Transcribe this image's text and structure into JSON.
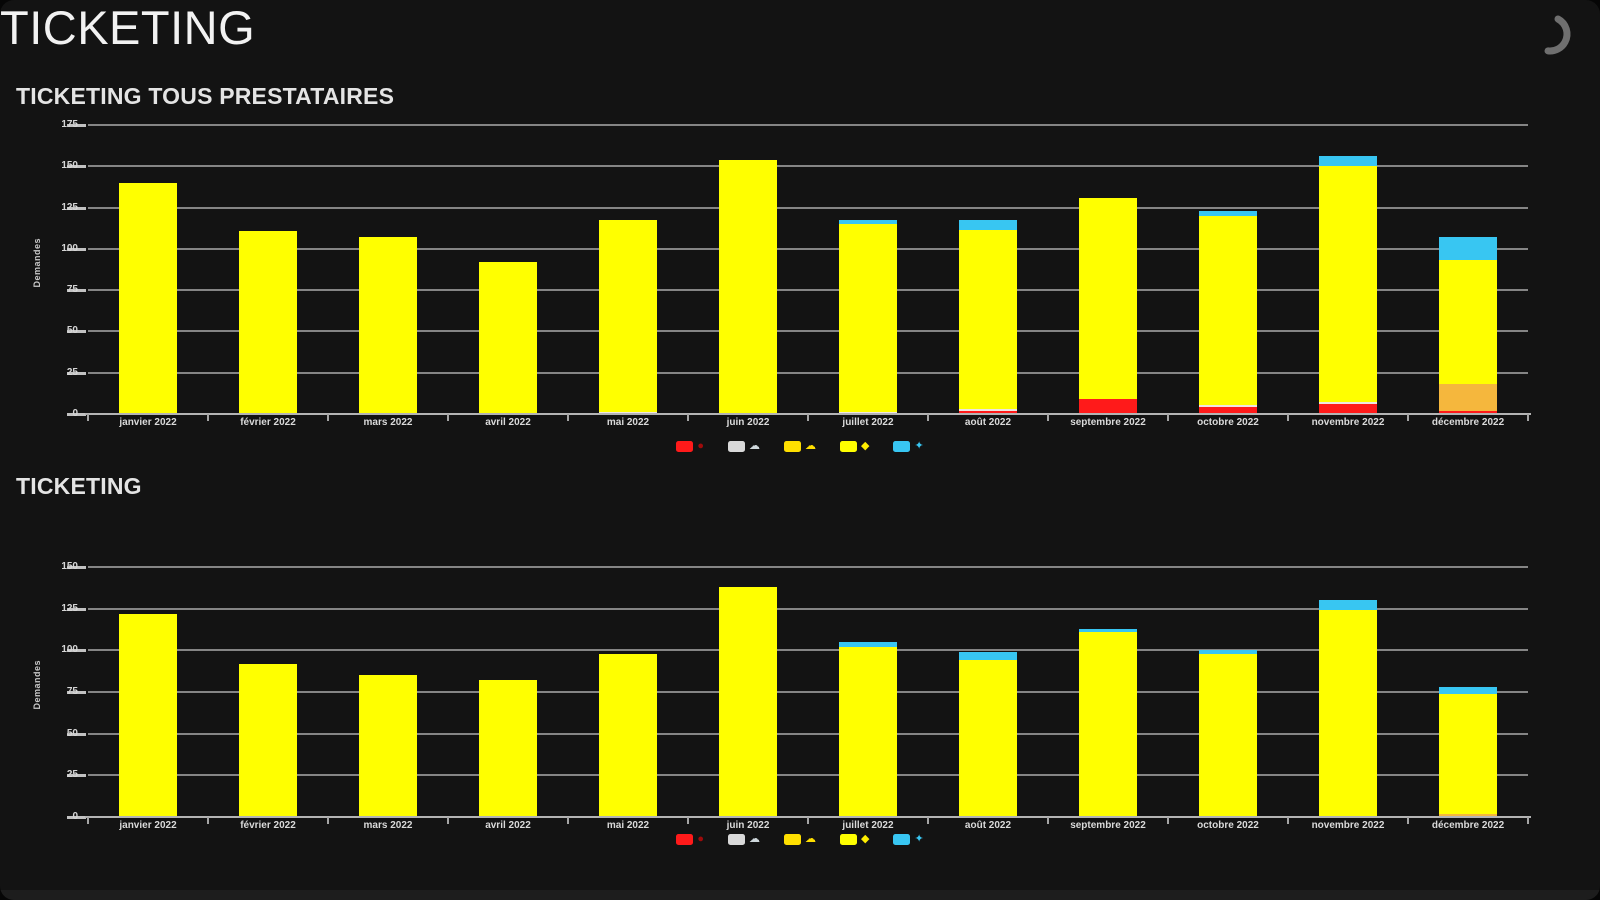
{
  "page": {
    "title": "TICKETING"
  },
  "icons": {
    "spinner": "loading-spinner-icon"
  },
  "chart_data": [
    {
      "type": "bar",
      "stacked": true,
      "title": "TICKETING TOUS PRESTATAIRES",
      "xlabel": "",
      "ylabel": "Demandes",
      "ylim": [
        0,
        175
      ],
      "yticks": [
        0,
        25,
        50,
        75,
        100,
        125,
        150,
        175
      ],
      "grid": true,
      "legend_position": "bottom-center",
      "categories": [
        "janvier 2022",
        "février 2022",
        "mars 2022",
        "avril 2022",
        "mai 2022",
        "juin 2022",
        "juillet 2022",
        "août 2022",
        "septembre 2022",
        "octobre 2022",
        "novembre 2022",
        "décembre 2022"
      ],
      "series": [
        {
          "name": "red",
          "color": "#ff1a1a",
          "values": [
            0,
            0,
            0,
            0,
            0,
            0,
            0,
            2,
            9,
            4,
            6,
            2
          ]
        },
        {
          "name": "white",
          "color": "#efe7e0",
          "values": [
            0,
            0,
            0,
            0,
            1,
            0,
            1,
            1,
            0,
            1,
            1,
            0
          ]
        },
        {
          "name": "amber",
          "color": "#f5b73d",
          "values": [
            0,
            0,
            0,
            0,
            0,
            0,
            0,
            0,
            0,
            0,
            0,
            16
          ]
        },
        {
          "name": "yellow",
          "color": "#ffff00",
          "values": [
            140,
            111,
            107,
            92,
            116,
            154,
            114,
            108,
            122,
            115,
            143,
            75
          ]
        },
        {
          "name": "cyan",
          "color": "#38c6f2",
          "values": [
            0,
            0,
            0,
            0,
            0,
            0,
            2,
            6,
            0,
            3,
            6,
            14
          ]
        }
      ],
      "totals": [
        140,
        111,
        107,
        92,
        117,
        154,
        117,
        117,
        131,
        123,
        156,
        107
      ],
      "legend": [
        {
          "swatch": "#ff1a1a",
          "glyph": "●",
          "glyph_color": "#9e0b0b"
        },
        {
          "swatch": "#d9d9d9",
          "glyph": "☁",
          "glyph_color": "#cfd8dc"
        },
        {
          "swatch": "#ffdf00",
          "glyph": "☁",
          "glyph_color": "#ffdf00"
        },
        {
          "swatch": "#ffff00",
          "glyph": "◆",
          "glyph_color": "#ffee00"
        },
        {
          "swatch": "#38c6f2",
          "glyph": "✦",
          "glyph_color": "#38c6f2"
        }
      ]
    },
    {
      "type": "bar",
      "stacked": true,
      "title": "TICKETING",
      "xlabel": "",
      "ylabel": "Demandes",
      "ylim": [
        0,
        150
      ],
      "yticks": [
        0,
        25,
        50,
        75,
        100,
        125,
        150
      ],
      "grid": true,
      "legend_position": "bottom-center",
      "categories": [
        "janvier 2022",
        "février 2022",
        "mars 2022",
        "avril 2022",
        "mai 2022",
        "juin 2022",
        "juillet 2022",
        "août 2022",
        "septembre 2022",
        "octobre 2022",
        "novembre 2022",
        "décembre 2022"
      ],
      "series": [
        {
          "name": "red",
          "color": "#ff1a1a",
          "values": [
            0,
            0,
            0,
            0,
            0,
            0,
            0,
            0,
            0,
            0,
            0,
            0
          ]
        },
        {
          "name": "white",
          "color": "#efe7e0",
          "values": [
            0,
            0,
            0,
            0,
            0,
            0,
            0,
            0,
            0,
            0,
            0,
            0
          ]
        },
        {
          "name": "amber",
          "color": "#f5b73d",
          "values": [
            0,
            0,
            0,
            0,
            0,
            0,
            0,
            0,
            0,
            0,
            0,
            2
          ]
        },
        {
          "name": "yellow",
          "color": "#ffff00",
          "values": [
            122,
            92,
            85,
            82,
            98,
            138,
            102,
            94,
            111,
            98,
            124,
            72
          ]
        },
        {
          "name": "cyan",
          "color": "#38c6f2",
          "values": [
            0,
            0,
            0,
            0,
            0,
            0,
            3,
            5,
            2,
            2,
            6,
            4
          ]
        }
      ],
      "totals": [
        122,
        92,
        85,
        82,
        98,
        138,
        105,
        99,
        113,
        100,
        130,
        78
      ],
      "legend": [
        {
          "swatch": "#ff1a1a",
          "glyph": "●",
          "glyph_color": "#9e0b0b"
        },
        {
          "swatch": "#d9d9d9",
          "glyph": "☁",
          "glyph_color": "#cfd8dc"
        },
        {
          "swatch": "#ffdf00",
          "glyph": "☁",
          "glyph_color": "#ffdf00"
        },
        {
          "swatch": "#ffff00",
          "glyph": "◆",
          "glyph_color": "#ffee00"
        },
        {
          "swatch": "#38c6f2",
          "glyph": "✦",
          "glyph_color": "#38c6f2"
        }
      ]
    }
  ]
}
